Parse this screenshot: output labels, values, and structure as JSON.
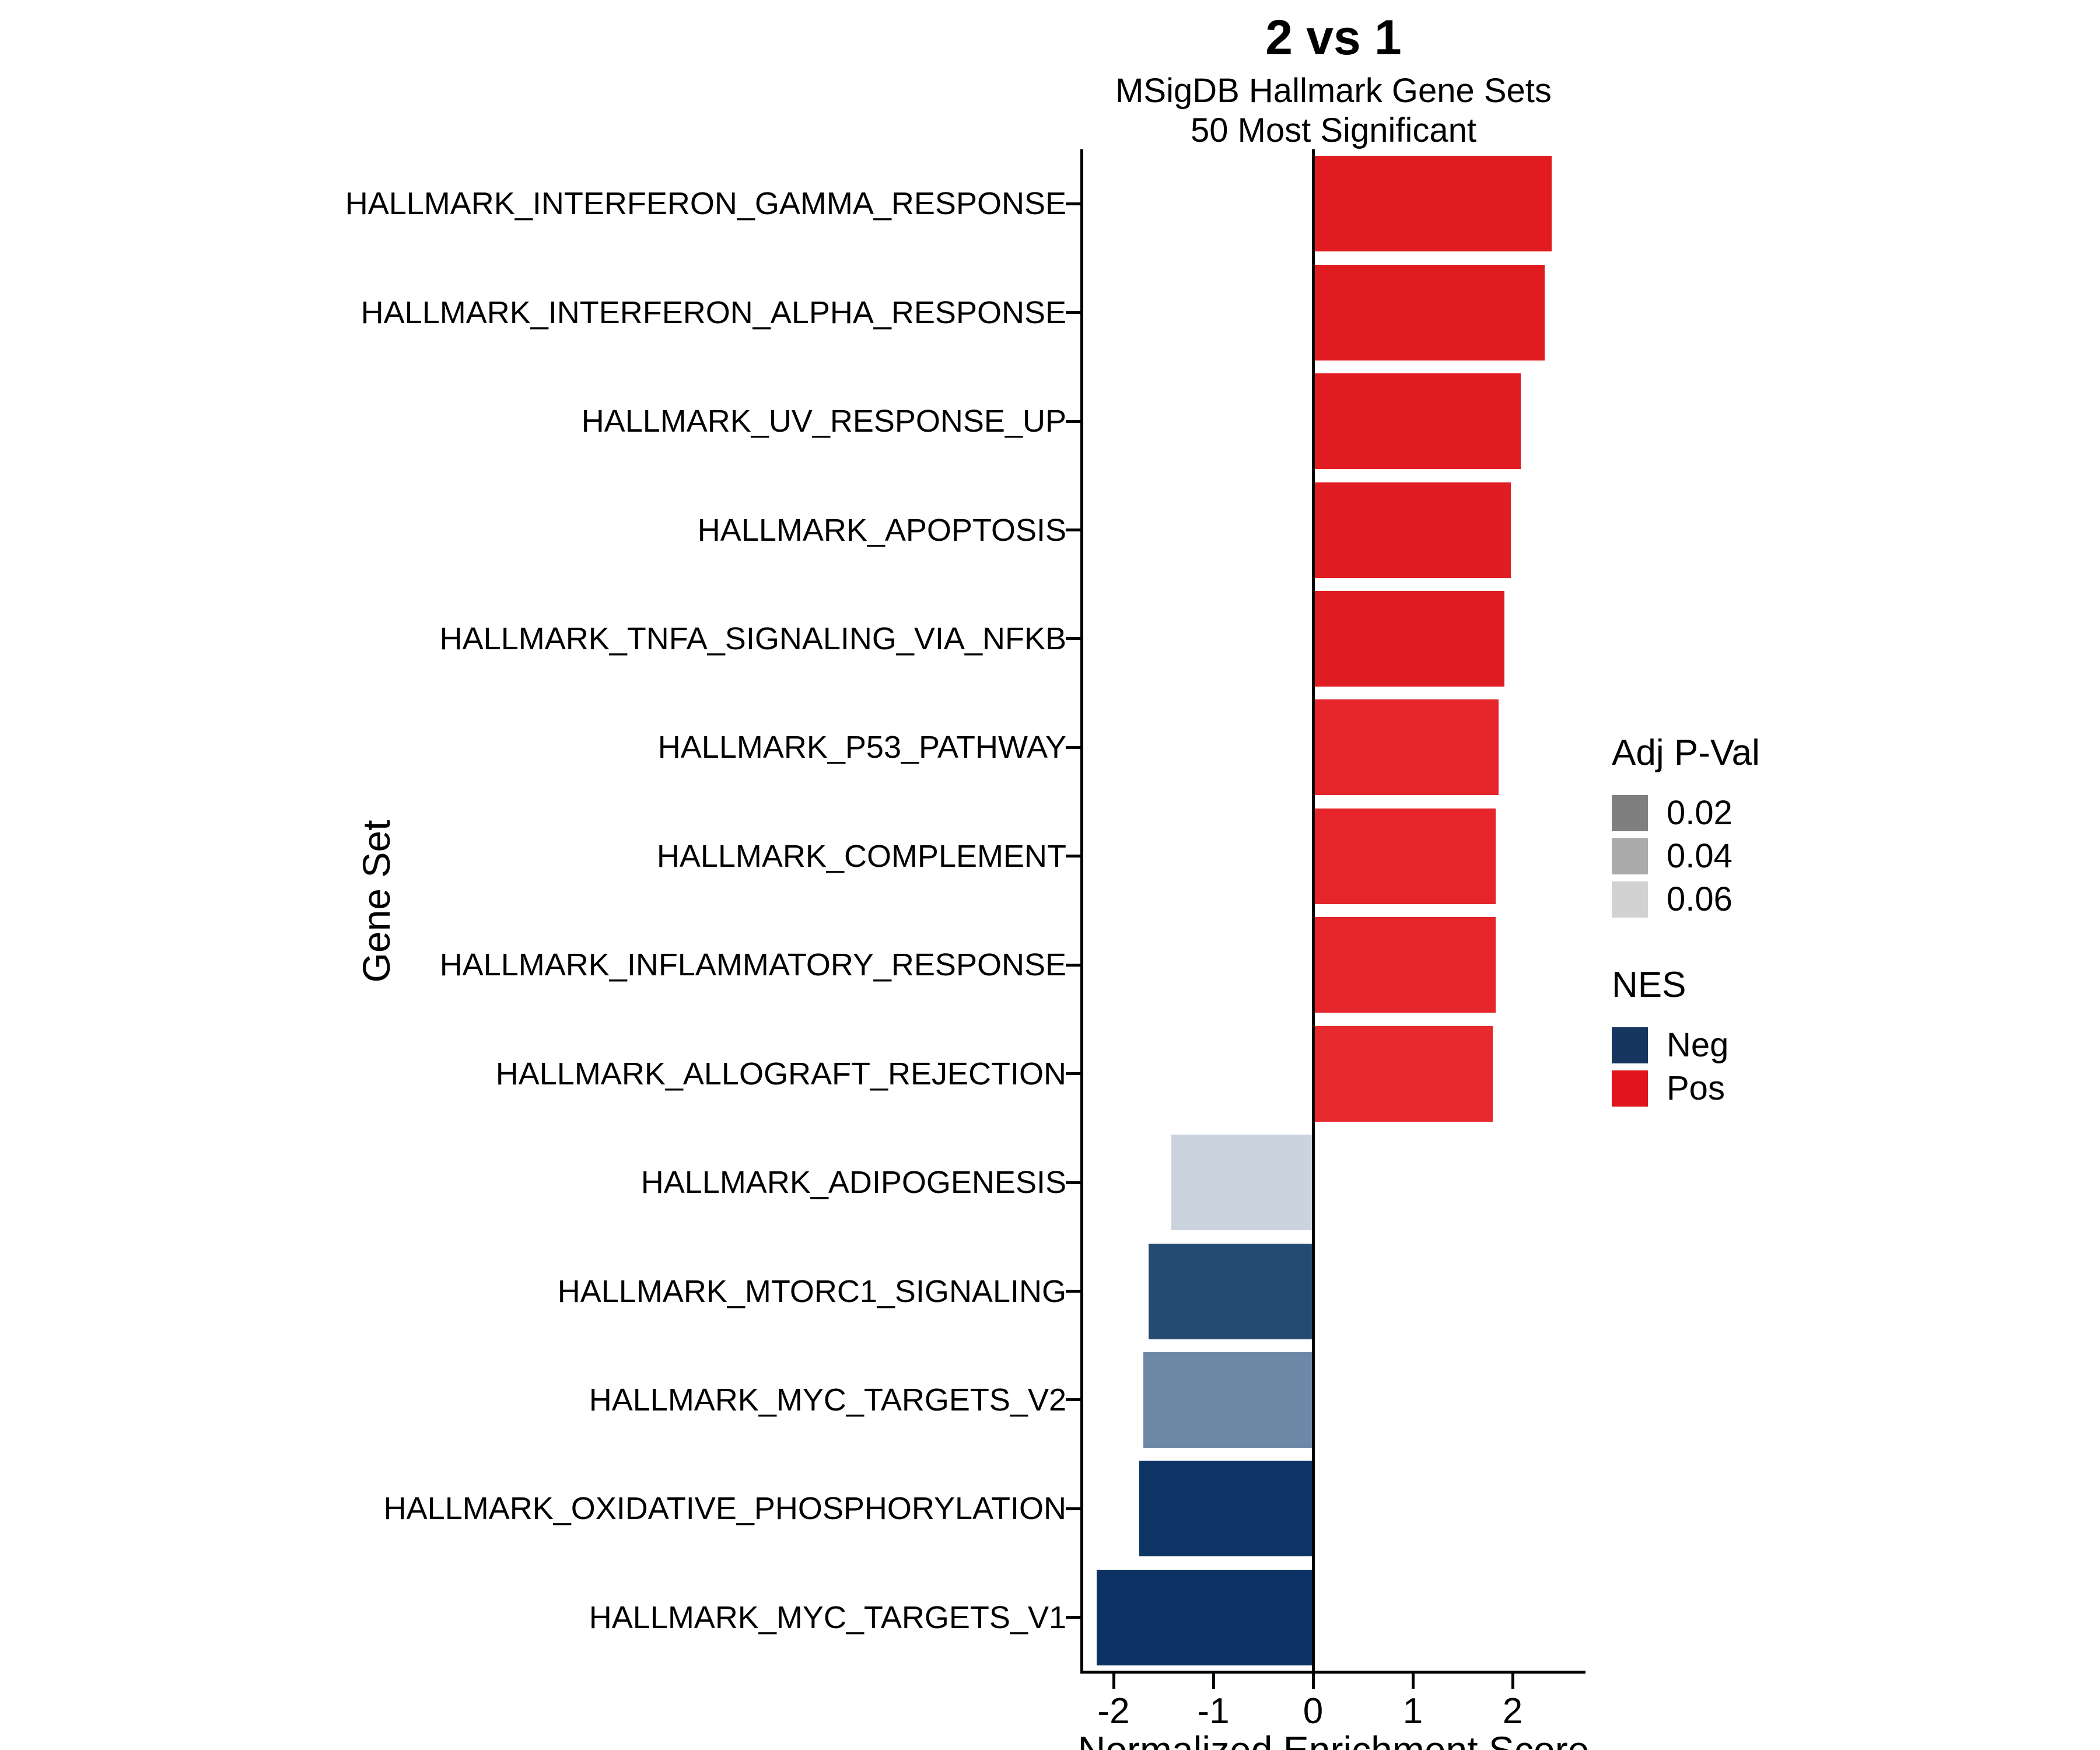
{
  "header": {
    "title": "2 vs 1",
    "subtitle_line1": "MSigDB Hallmark Gene Sets",
    "subtitle_line2": "50 Most Significant"
  },
  "axes": {
    "x_title": "Normalized Enrichment Score",
    "y_title": "Gene Set"
  },
  "legend": {
    "pval_title": "Adj P-Val",
    "pval_items": [
      {
        "label": "0.02",
        "color": "#7F7F7F"
      },
      {
        "label": "0.04",
        "color": "#ABABAB"
      },
      {
        "label": "0.06",
        "color": "#D2D2D2"
      }
    ],
    "nes_title": "NES",
    "nes_items": [
      {
        "label": "Neg",
        "color": "#16365F"
      },
      {
        "label": "Pos",
        "color": "#E1151D"
      }
    ]
  },
  "chart_data": {
    "type": "bar",
    "orientation": "horizontal",
    "title": "2 vs 1",
    "subtitle": "MSigDB Hallmark Gene Sets / 50 Most Significant",
    "xlabel": "Normalized Enrichment Score",
    "ylabel": "Gene Set",
    "grid": false,
    "legend_position": "right",
    "xlim": [
      -2.35,
      2.7
    ],
    "xticks": [
      -2,
      -1,
      0,
      1,
      2
    ],
    "categories": [
      "HALLMARK_INTERFERON_GAMMA_RESPONSE",
      "HALLMARK_INTERFERON_ALPHA_RESPONSE",
      "HALLMARK_UV_RESPONSE_UP",
      "HALLMARK_APOPTOSIS",
      "HALLMARK_TNFA_SIGNALING_VIA_NFKB",
      "HALLMARK_P53_PATHWAY",
      "HALLMARK_COMPLEMENT",
      "HALLMARK_INFLAMMATORY_RESPONSE",
      "HALLMARK_ALLOGRAFT_REJECTION",
      "HALLMARK_ADIPOGENESIS",
      "HALLMARK_MTORC1_SIGNALING",
      "HALLMARK_MYC_TARGETS_V2",
      "HALLMARK_OXIDATIVE_PHOSPHORYLATION",
      "HALLMARK_MYC_TARGETS_V1"
    ],
    "values": [
      2.39,
      2.32,
      2.08,
      1.98,
      1.92,
      1.86,
      1.83,
      1.83,
      1.8,
      -1.42,
      -1.65,
      -1.7,
      -1.74,
      -2.17
    ],
    "bar_colors": [
      "#E01C21",
      "#E01C21",
      "#E01C21",
      "#E01D22",
      "#E01D22",
      "#E52529",
      "#E52529",
      "#E52529",
      "#E6292D",
      "#CBD3DF",
      "#254B72",
      "#6E87A6",
      "#0E3365",
      "#0D3264"
    ],
    "nes_sign_colors": {
      "Neg": "#16365F",
      "Pos": "#E1151D"
    }
  }
}
